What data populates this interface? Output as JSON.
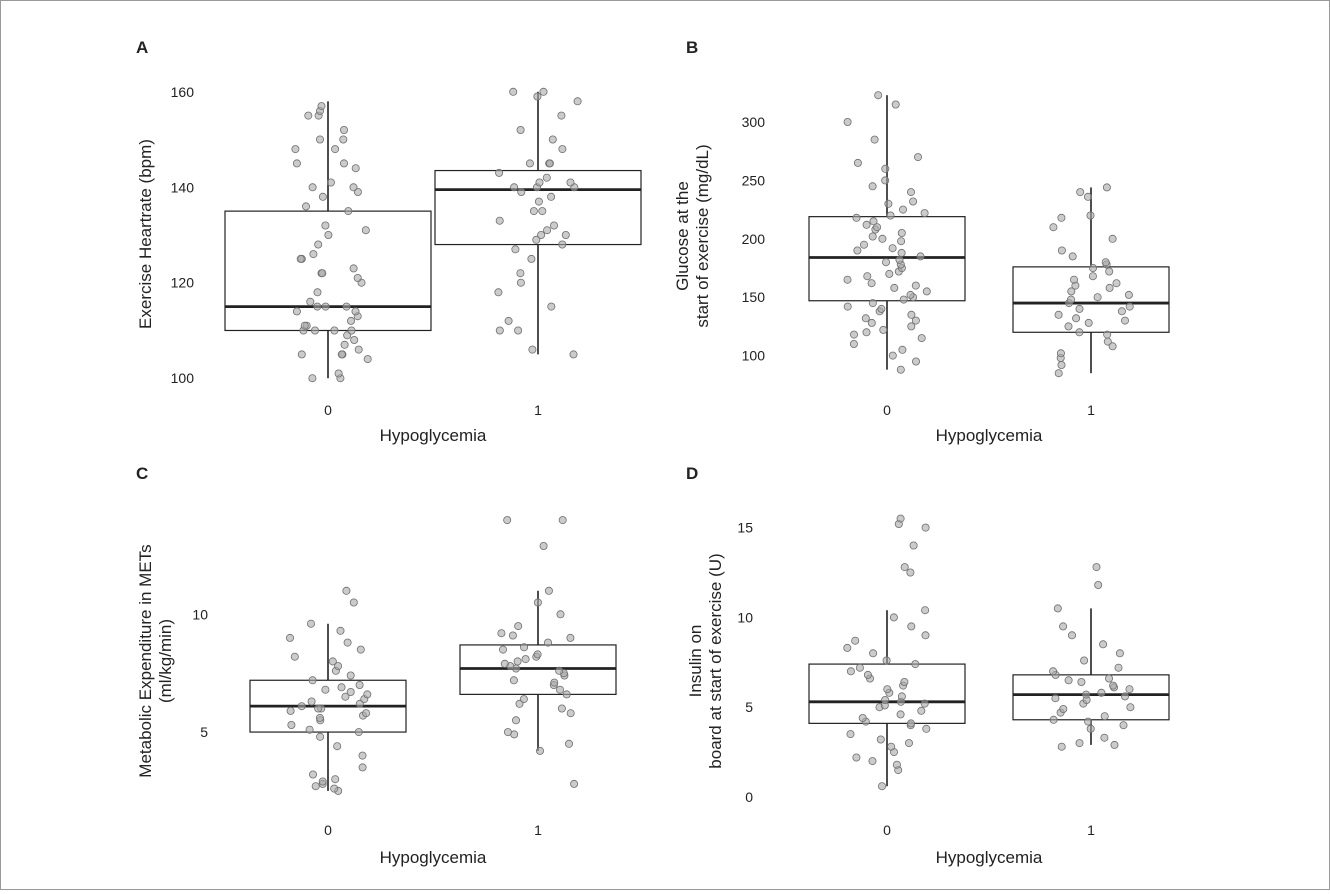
{
  "chart_data": [
    {
      "panel": "A",
      "type": "box",
      "xlabel": "Hypoglycemia",
      "ylabel": [
        "Exercise Heartrate (bpm)"
      ],
      "categories": [
        "0",
        "1"
      ],
      "yticks": [
        100,
        120,
        140,
        160
      ],
      "ylim": [
        99,
        161
      ],
      "boxes": [
        {
          "category": "0",
          "whisker_low": 100,
          "q1": 110,
          "median": 115,
          "q3": 135,
          "whisker_high": 158
        },
        {
          "category": "1",
          "whisker_low": 105,
          "q1": 128,
          "median": 139.5,
          "q3": 143.5,
          "whisker_high": 160
        }
      ],
      "points": [
        {
          "category": "0",
          "values": [
            100,
            100,
            101,
            104,
            105,
            105,
            105,
            106,
            107,
            108,
            109,
            110,
            110,
            110,
            110,
            111,
            111,
            112,
            113,
            114,
            114,
            115,
            115,
            115,
            116,
            118,
            120,
            121,
            122,
            122,
            123,
            125,
            125,
            126,
            128,
            130,
            131,
            132,
            135,
            136,
            138,
            139,
            140,
            140,
            141,
            144,
            145,
            145,
            148,
            148,
            150,
            150,
            152,
            155,
            155,
            156,
            157
          ]
        },
        {
          "category": "1",
          "values": [
            105,
            106,
            110,
            110,
            112,
            115,
            118,
            120,
            122,
            125,
            127,
            128,
            129,
            130,
            130,
            131,
            132,
            133,
            135,
            135,
            137,
            138,
            139,
            140,
            140,
            140,
            141,
            141,
            142,
            143,
            145,
            145,
            145,
            148,
            150,
            152,
            155,
            158,
            159,
            160,
            160
          ]
        }
      ]
    },
    {
      "panel": "B",
      "type": "box",
      "xlabel": "Hypoglycemia",
      "ylabel": [
        "Glucose at the",
        "start of exercise (mg/dL)"
      ],
      "categories": [
        "0",
        "1"
      ],
      "yticks": [
        100,
        150,
        200,
        250,
        300
      ],
      "ylim": [
        80,
        330
      ],
      "boxes": [
        {
          "category": "0",
          "whisker_low": 88,
          "q1": 147,
          "median": 184,
          "q3": 219,
          "whisker_high": 323
        },
        {
          "category": "1",
          "whisker_low": 85,
          "q1": 120,
          "median": 145,
          "q3": 176,
          "whisker_high": 244
        }
      ],
      "points": [
        {
          "category": "0",
          "values": [
            88,
            95,
            100,
            105,
            110,
            115,
            118,
            120,
            122,
            125,
            128,
            130,
            132,
            135,
            138,
            140,
            142,
            145,
            148,
            150,
            152,
            155,
            158,
            160,
            162,
            165,
            168,
            170,
            172,
            175,
            178,
            180,
            182,
            185,
            188,
            190,
            192,
            195,
            198,
            200,
            202,
            205,
            208,
            210,
            212,
            215,
            218,
            220,
            222,
            225,
            230,
            232,
            240,
            245,
            250,
            260,
            265,
            270,
            285,
            300,
            315,
            323
          ]
        },
        {
          "category": "1",
          "values": [
            85,
            92,
            98,
            102,
            108,
            112,
            118,
            120,
            125,
            128,
            130,
            132,
            135,
            138,
            140,
            142,
            145,
            148,
            150,
            152,
            155,
            158,
            160,
            162,
            165,
            168,
            172,
            175,
            178,
            180,
            185,
            190,
            200,
            210,
            218,
            220,
            236,
            240,
            244
          ]
        }
      ]
    },
    {
      "panel": "C",
      "type": "box",
      "xlabel": "Hypoglycemia",
      "ylabel": [
        "Metabolic Expenditure in METs",
        "(ml/kg/min)"
      ],
      "categories": [
        "0",
        "1"
      ],
      "yticks": [
        5,
        10
      ],
      "ylim": [
        2.2,
        14.6
      ],
      "boxes": [
        {
          "category": "0",
          "whisker_low": 2.5,
          "q1": 5.0,
          "median": 6.1,
          "q3": 7.2,
          "whisker_high": 9.6
        },
        {
          "category": "1",
          "whisker_low": 4.2,
          "q1": 6.6,
          "median": 7.7,
          "q3": 8.7,
          "whisker_high": 11.0
        }
      ],
      "points": [
        {
          "category": "0",
          "values": [
            2.5,
            2.6,
            2.7,
            2.8,
            2.9,
            3.0,
            3.2,
            3.5,
            4.0,
            4.4,
            4.8,
            5.0,
            5.1,
            5.3,
            5.5,
            5.6,
            5.7,
            5.8,
            5.9,
            6.0,
            6.0,
            6.1,
            6.2,
            6.3,
            6.4,
            6.5,
            6.6,
            6.7,
            6.8,
            6.9,
            7.0,
            7.2,
            7.4,
            7.6,
            7.8,
            8.0,
            8.2,
            8.5,
            8.8,
            9.0,
            9.3,
            9.6,
            10.5,
            11.0
          ]
        },
        {
          "category": "1",
          "values": [
            2.8,
            4.2,
            4.5,
            4.9,
            5.0,
            5.5,
            5.8,
            6.0,
            6.2,
            6.4,
            6.6,
            6.8,
            7.0,
            7.1,
            7.2,
            7.4,
            7.5,
            7.6,
            7.7,
            7.8,
            7.9,
            8.0,
            8.1,
            8.2,
            8.3,
            8.5,
            8.6,
            8.8,
            9.0,
            9.1,
            9.2,
            9.5,
            10.0,
            10.5,
            11.0,
            12.9,
            14.0,
            14.0
          ]
        }
      ]
    },
    {
      "panel": "D",
      "type": "box",
      "xlabel": "Hypoglycemia",
      "ylabel": [
        "Insulin on",
        "board at start of exercise (U)"
      ],
      "categories": [
        "0",
        "1"
      ],
      "yticks": [
        0,
        5,
        10,
        15
      ],
      "ylim": [
        -0.5,
        16.2
      ],
      "boxes": [
        {
          "category": "0",
          "whisker_low": 0.6,
          "q1": 4.1,
          "median": 5.3,
          "q3": 7.4,
          "whisker_high": 10.4
        },
        {
          "category": "1",
          "whisker_low": 2.9,
          "q1": 4.3,
          "median": 5.7,
          "q3": 6.8,
          "whisker_high": 10.5
        }
      ],
      "points": [
        {
          "category": "0",
          "values": [
            0.6,
            1.5,
            1.8,
            2.0,
            2.2,
            2.5,
            2.8,
            3.0,
            3.2,
            3.5,
            3.8,
            4.0,
            4.1,
            4.2,
            4.4,
            4.6,
            4.8,
            5.0,
            5.1,
            5.2,
            5.3,
            5.4,
            5.6,
            5.8,
            6.0,
            6.2,
            6.4,
            6.6,
            6.8,
            7.0,
            7.2,
            7.4,
            7.6,
            8.0,
            8.3,
            8.7,
            9.0,
            9.5,
            10.0,
            10.4,
            12.5,
            12.8,
            14.0,
            15.0,
            15.2,
            15.5
          ]
        },
        {
          "category": "1",
          "values": [
            2.8,
            2.9,
            3.0,
            3.3,
            3.8,
            4.0,
            4.2,
            4.3,
            4.5,
            4.7,
            4.9,
            5.0,
            5.2,
            5.4,
            5.5,
            5.6,
            5.7,
            5.8,
            6.0,
            6.1,
            6.2,
            6.4,
            6.5,
            6.6,
            6.8,
            7.0,
            7.2,
            7.6,
            8.0,
            8.5,
            9.0,
            9.5,
            10.5,
            11.8,
            12.8
          ]
        }
      ]
    }
  ],
  "style": {
    "point_fill": "#a9a9a9",
    "point_stroke": "#6e6e6e",
    "box_stroke": "#222222",
    "background": "#ffffff"
  }
}
